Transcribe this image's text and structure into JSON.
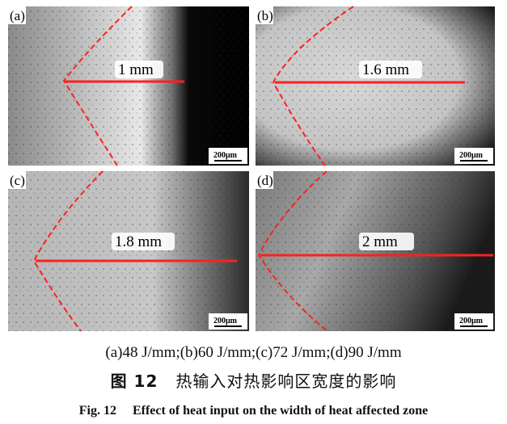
{
  "panels": [
    {
      "tag": "(a)",
      "width_label": "1 mm",
      "scale_bar": "200μm"
    },
    {
      "tag": "(b)",
      "width_label": "1.6 mm",
      "scale_bar": "200μm"
    },
    {
      "tag": "(c)",
      "width_label": "1.8 mm",
      "scale_bar": "200μm"
    },
    {
      "tag": "(d)",
      "width_label": "2 mm",
      "scale_bar": "200μm"
    }
  ],
  "caption": {
    "subcaption": "(a)48 J/mm;(b)60 J/mm;(c)72 J/mm;(d)90 J/mm",
    "zh_number": "图 12",
    "zh_title": "热输入对热影响区宽度的影响",
    "en_number": "Fig. 12",
    "en_title": "Effect of heat input on the width of heat affected zone"
  },
  "colors": {
    "marker": "#ff2020"
  }
}
